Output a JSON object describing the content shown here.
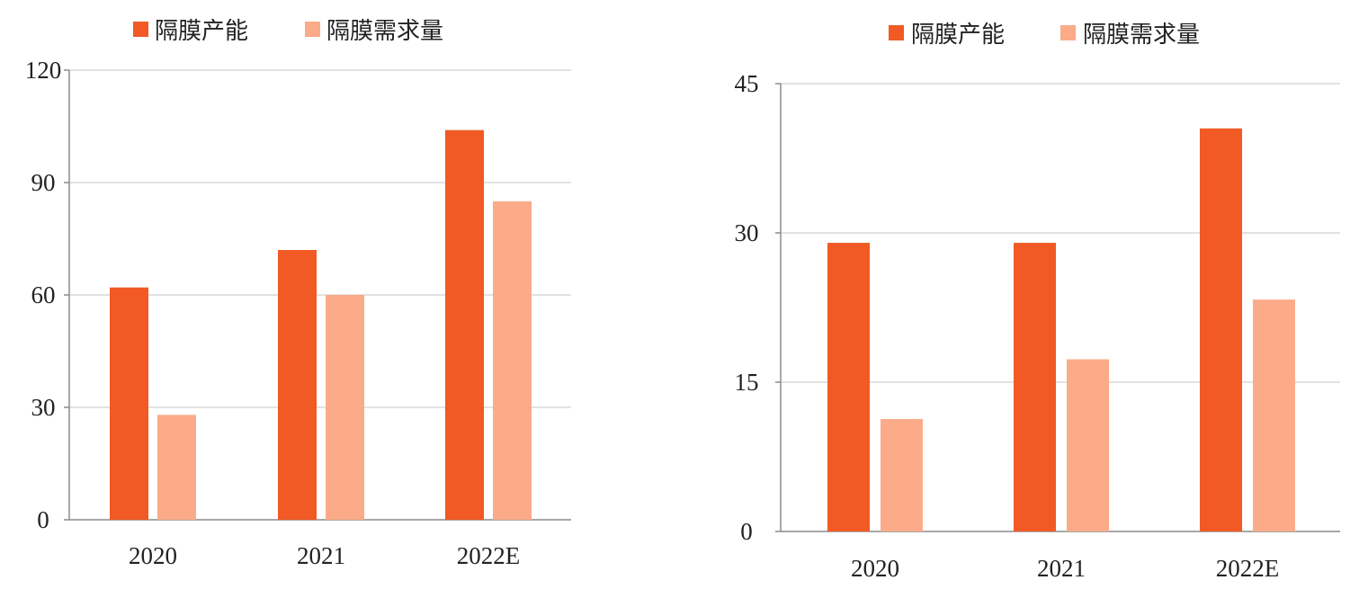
{
  "colors": {
    "capacity": "#f15a24",
    "demand": "#fcab88",
    "grid": "#d9d9d9",
    "axis": "#8c8c8c",
    "text": "#222222"
  },
  "chart_data": [
    {
      "type": "bar",
      "categories": [
        "2020",
        "2021",
        "2022E"
      ],
      "series": [
        {
          "name": "隔膜产能",
          "values": [
            62,
            72,
            104
          ]
        },
        {
          "name": "隔膜需求量",
          "values": [
            28,
            60,
            85
          ]
        }
      ],
      "ylim": [
        0,
        120
      ],
      "yticks": [
        "0",
        "30",
        "60",
        "90",
        "120"
      ],
      "grid": true,
      "legend": "top-left"
    },
    {
      "type": "bar",
      "categories": [
        "2020",
        "2021",
        "2022E"
      ],
      "series": [
        {
          "name": "隔膜产能",
          "values": [
            29,
            29,
            40.5
          ]
        },
        {
          "name": "隔膜需求量",
          "values": [
            11.3,
            17.3,
            23.3
          ]
        }
      ],
      "ylim": [
        0,
        45
      ],
      "yticks": [
        "0",
        "15",
        "30",
        "45"
      ],
      "grid": true,
      "legend": "top-center"
    }
  ]
}
